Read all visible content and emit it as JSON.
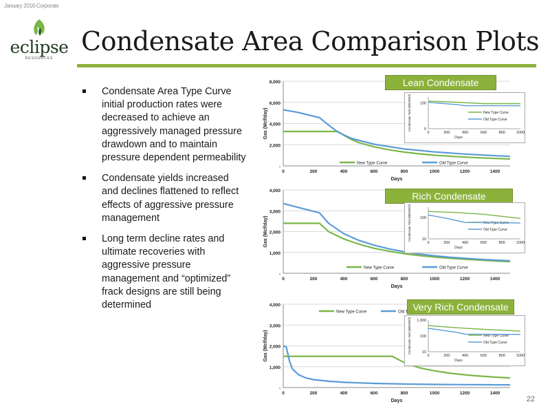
{
  "header": {
    "date_label": "January 2016 Corporate"
  },
  "logo": {
    "word": "eclipse",
    "sub": "RESOURCES"
  },
  "title": "Condensate Area Comparison Plots",
  "bullets": [
    "Condensate Area Type Curve initial production rates were decreased to achieve an aggressively managed pressure drawdown and to maintain pressure dependent permeability",
    "Condensate yields increased and declines flattened to reflect effects of aggressive pressure management",
    "Long term decline rates and ultimate recoveries with aggressive pressure management and “optimized” frack designs are still being determined"
  ],
  "colors": {
    "green": "#7ab648",
    "blue": "#5b9bd5",
    "accent": "#8db23c"
  },
  "page_number": "22",
  "chart_data": [
    {
      "type": "line",
      "label": "Lean Condensate",
      "xlabel": "Days",
      "ylabel": "Gas (Mcf/day)",
      "xlim": [
        0,
        1500
      ],
      "ylim": [
        0,
        8000
      ],
      "xticks": [
        0,
        200,
        400,
        600,
        800,
        1000,
        1200,
        1400
      ],
      "yticks": [
        0,
        2000,
        4000,
        6000,
        8000
      ],
      "ytick_labels": [
        "-",
        "2,000",
        "4,000",
        "6,000",
        "8,000"
      ],
      "series": [
        {
          "name": "New Type Curve",
          "color": "#7ab648",
          "x": [
            0,
            360,
            400,
            450,
            500,
            600,
            700,
            800,
            900,
            1000,
            1100,
            1200,
            1300,
            1400,
            1500
          ],
          "y": [
            3250,
            3250,
            2900,
            2500,
            2200,
            1800,
            1520,
            1300,
            1140,
            1010,
            910,
            830,
            760,
            700,
            650
          ]
        },
        {
          "name": "Old Type Curve",
          "color": "#5b9bd5",
          "x": [
            0,
            100,
            240,
            300,
            360,
            450,
            600,
            800,
            1000,
            1200,
            1400,
            1500
          ],
          "y": [
            5300,
            5050,
            4550,
            3850,
            3200,
            2600,
            2050,
            1600,
            1320,
            1120,
            960,
            900
          ]
        }
      ],
      "inset": {
        "ylabel": "Condensate Yield (Bbl/MMcf)",
        "xlabel": "Days",
        "xlim": [
          0,
          1000
        ],
        "ylim": [
          5,
          200
        ],
        "xticks": [
          0,
          200,
          400,
          600,
          800,
          1000
        ],
        "yticks": [
          5,
          100
        ],
        "ytick_labels": [
          "5",
          "100"
        ],
        "series": [
          {
            "name": "New Type Curve",
            "color": "#7ab648",
            "x": [
              0,
              300,
              600,
              1000
            ],
            "y": [
              125,
              110,
              93,
              93
            ]
          },
          {
            "name": "Old Type Curve",
            "color": "#5b9bd5",
            "x": [
              0,
              300,
              400,
              1000
            ],
            "y": [
              108,
              84,
              73,
              73
            ]
          }
        ]
      }
    },
    {
      "type": "line",
      "label": "Rich Condensate",
      "xlabel": "Days",
      "ylabel": "Gas (Mcf/day)",
      "xlim": [
        0,
        1500
      ],
      "ylim": [
        0,
        4000
      ],
      "xticks": [
        0,
        200,
        400,
        600,
        800,
        1000,
        1200,
        1400
      ],
      "yticks": [
        0,
        1000,
        2000,
        3000,
        4000
      ],
      "ytick_labels": [
        "-",
        "1,000",
        "2,000",
        "3,000",
        "4,000"
      ],
      "series": [
        {
          "name": "New Type Curve",
          "color": "#7ab648",
          "x": [
            0,
            240,
            300,
            400,
            500,
            600,
            700,
            800,
            900,
            1000,
            1100,
            1200,
            1300,
            1400,
            1500
          ],
          "y": [
            2400,
            2400,
            2000,
            1650,
            1400,
            1200,
            1060,
            940,
            850,
            780,
            720,
            670,
            630,
            590,
            560
          ]
        },
        {
          "name": "Old Type Curve",
          "color": "#5b9bd5",
          "x": [
            0,
            240,
            300,
            400,
            500,
            600,
            700,
            800,
            900,
            1000,
            1100,
            1200,
            1300,
            1400,
            1500
          ],
          "y": [
            3350,
            2900,
            2400,
            1900,
            1580,
            1350,
            1170,
            1030,
            920,
            840,
            770,
            720,
            670,
            630,
            600
          ]
        }
      ],
      "inset": {
        "ylabel": "Condensate Yield (Bbl/MMcf)",
        "xlabel": "Days",
        "xlim": [
          0,
          1000
        ],
        "ylim": [
          10,
          300
        ],
        "xticks": [
          0,
          200,
          400,
          600,
          800,
          1000
        ],
        "yticks": [
          10,
          100
        ],
        "ytick_labels": [
          "10",
          "100"
        ],
        "series": [
          {
            "name": "New Type Curve",
            "color": "#7ab648",
            "x": [
              0,
              300,
              600,
              1000
            ],
            "y": [
              190,
              170,
              140,
              90
            ]
          },
          {
            "name": "Old Type Curve",
            "color": "#5b9bd5",
            "x": [
              0,
              200,
              400,
              1000
            ],
            "y": [
              130,
              90,
              58,
              55
            ]
          }
        ]
      }
    },
    {
      "type": "line",
      "label": "Very Rich Condensate",
      "xlabel": "Days",
      "ylabel": "Gas (Mcf/day)",
      "xlim": [
        0,
        1500
      ],
      "ylim": [
        0,
        4000
      ],
      "xticks": [
        0,
        200,
        400,
        600,
        800,
        1000,
        1200,
        1400
      ],
      "yticks": [
        0,
        1000,
        2000,
        3000,
        4000
      ],
      "ytick_labels": [
        "-",
        "1,000",
        "2,000",
        "3,000",
        "4,000"
      ],
      "series": [
        {
          "name": "New Type Curve",
          "color": "#7ab648",
          "x": [
            0,
            720,
            800,
            900,
            1000,
            1100,
            1200,
            1300,
            1400,
            1500
          ],
          "y": [
            1500,
            1500,
            1200,
            950,
            800,
            690,
            610,
            550,
            500,
            460
          ]
        },
        {
          "name": "Old Type",
          "color": "#5b9bd5",
          "x": [
            0,
            20,
            40,
            60,
            100,
            150,
            200,
            300,
            400,
            600,
            800,
            1000,
            1200,
            1500
          ],
          "y": [
            2000,
            1950,
            1300,
            900,
            620,
            460,
            380,
            300,
            250,
            200,
            170,
            150,
            140,
            130
          ]
        }
      ],
      "inset": {
        "ylabel": "Condensate Yield (Bbl/MMcf)",
        "xlabel": "Days",
        "xlim": [
          0,
          1000
        ],
        "ylim": [
          10,
          1000
        ],
        "xticks": [
          0,
          200,
          400,
          600,
          800,
          1000
        ],
        "yticks": [
          10,
          100,
          1000
        ],
        "ytick_labels": [
          "10",
          "100",
          "1,000"
        ],
        "series": [
          {
            "name": "New Type Curve",
            "color": "#7ab648",
            "x": [
              0,
              300,
              600,
              1000
            ],
            "y": [
              450,
              330,
              260,
              200
            ]
          },
          {
            "name": "Old Type Curve",
            "color": "#5b9bd5",
            "x": [
              0,
              300,
              400,
              1000
            ],
            "y": [
              300,
              170,
              130,
              125
            ]
          }
        ]
      }
    }
  ]
}
